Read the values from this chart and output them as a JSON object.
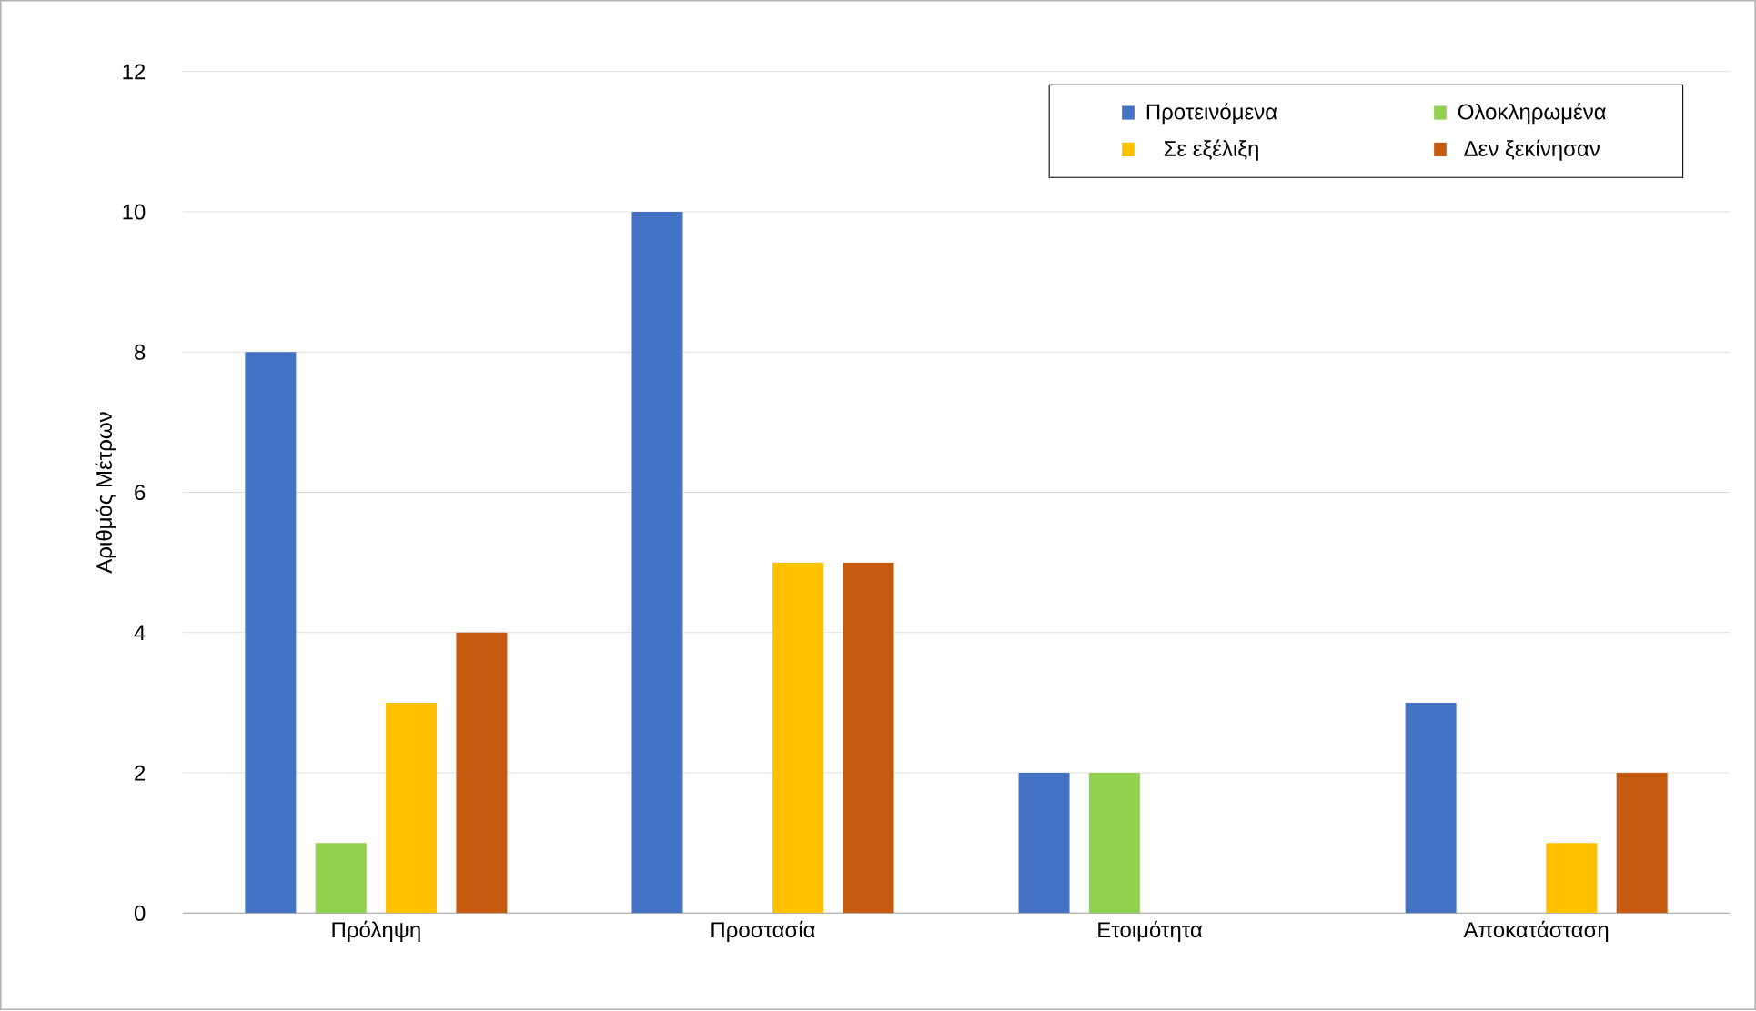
{
  "chart_data": {
    "type": "bar",
    "ylabel": "Αριθμός Μέτρων",
    "categories": [
      "Πρόληψη",
      "Προστασία",
      "Ετοιμότητα",
      "Αποκατάσταση"
    ],
    "series": [
      {
        "name": "Προτεινόμενα",
        "color": "#4472c4",
        "values": [
          8,
          10,
          2,
          3
        ]
      },
      {
        "name": "Ολοκληρωμένα",
        "color": "#92d050",
        "values": [
          1,
          0,
          2,
          0
        ]
      },
      {
        "name": "Σε εξέλιξη",
        "color": "#ffc000",
        "values": [
          3,
          5,
          0,
          1
        ]
      },
      {
        "name": "Δεν ξεκίνησαν",
        "color": "#c55a11",
        "values": [
          4,
          5,
          0,
          2
        ]
      }
    ],
    "ylim": [
      0,
      12
    ],
    "yticks": [
      0,
      2,
      4,
      6,
      8,
      10,
      12
    ],
    "grid": "y",
    "legend": "top right"
  }
}
